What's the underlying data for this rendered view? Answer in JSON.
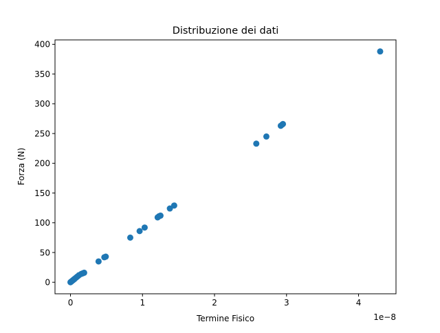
{
  "chart_data": {
    "type": "scatter",
    "title": "Distribuzione dei dati",
    "xlabel": "Termine Fisico",
    "ylabel": "Forza (N)",
    "x_offset_label": "1e−8",
    "xlim": [
      -0.215,
      4.52
    ],
    "ylim": [
      -19.4,
      407.4
    ],
    "xticks": [
      0,
      1,
      2,
      3,
      4
    ],
    "xtick_labels": [
      "0",
      "1",
      "2",
      "3",
      "4"
    ],
    "yticks": [
      0,
      50,
      100,
      150,
      200,
      250,
      300,
      350,
      400
    ],
    "ytick_labels": [
      "0",
      "50",
      "100",
      "150",
      "200",
      "250",
      "300",
      "350",
      "400"
    ],
    "grid": false,
    "legend": false,
    "marker_color": "#1f77b4",
    "series": [
      {
        "x": [
          0.0,
          0.01,
          0.02,
          0.03,
          0.04,
          0.05,
          0.06,
          0.08,
          0.1,
          0.12,
          0.15,
          0.17,
          0.19,
          0.39,
          0.47,
          0.49,
          0.83,
          0.96,
          1.03,
          1.21,
          1.23,
          1.25,
          1.38,
          1.44,
          2.58,
          2.72,
          2.92,
          2.94,
          2.95,
          4.3
        ],
        "y": [
          0,
          1,
          2,
          3,
          4,
          5,
          6,
          8,
          10,
          12,
          14,
          15,
          16,
          35,
          42,
          43,
          75,
          86,
          92,
          109,
          111,
          112,
          124,
          129,
          233,
          245,
          263,
          265,
          266,
          388
        ]
      }
    ]
  }
}
